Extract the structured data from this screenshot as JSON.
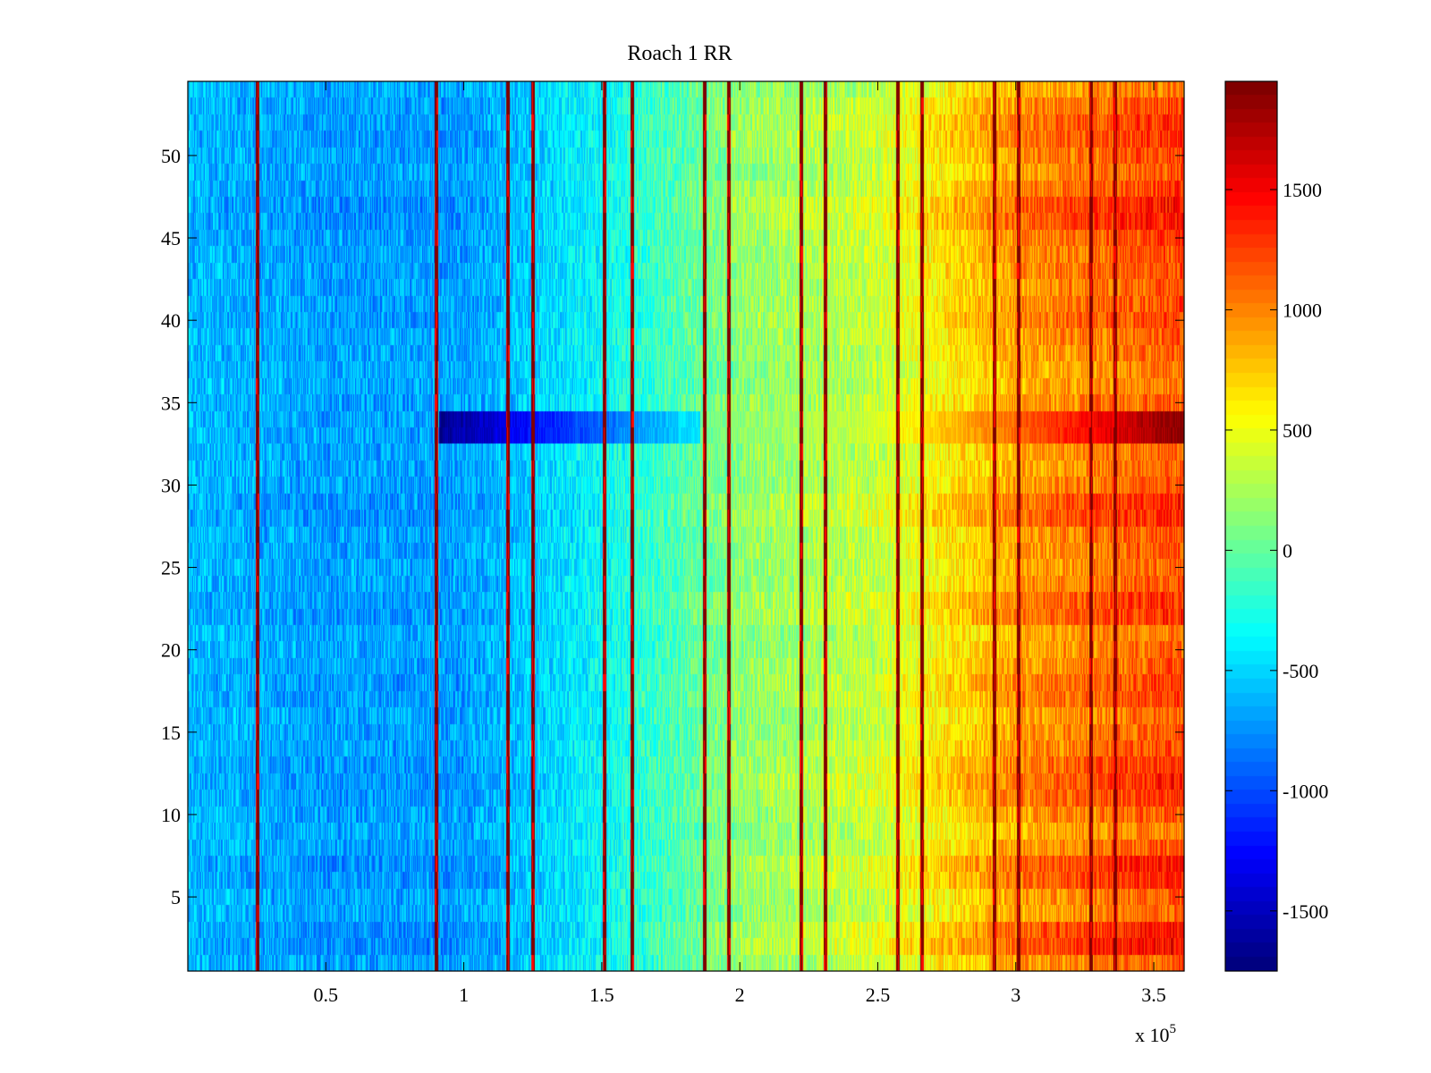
{
  "chart_data": {
    "type": "heatmap",
    "title": "Roach 1 RR",
    "xlabel": "",
    "ylabel": "",
    "x_exponent_label": {
      "base": "x 10",
      "power": "5"
    },
    "xlim": [
      0,
      361000
    ],
    "ylim": [
      0.5,
      54.5
    ],
    "x_tick_values": [
      0.5,
      1,
      1.5,
      2,
      2.5,
      3,
      3.5
    ],
    "x_tick_labels": [
      "0.5",
      "1",
      "1.5",
      "2",
      "2.5",
      "3",
      "3.5"
    ],
    "y_tick_values": [
      5,
      10,
      15,
      20,
      25,
      30,
      35,
      40,
      45,
      50
    ],
    "y_tick_labels": [
      "5",
      "10",
      "15",
      "20",
      "25",
      "30",
      "35",
      "40",
      "45",
      "50"
    ],
    "rows": 54,
    "colorbar": {
      "colormap": "jet",
      "clim": [
        -1750,
        1950
      ],
      "tick_values": [
        -1500,
        -1000,
        -500,
        0,
        500,
        1000,
        1500
      ],
      "tick_labels": [
        "-1500",
        "-1000",
        "-500",
        "0",
        "500",
        "1000",
        "1500"
      ]
    },
    "background_trend": {
      "description_x": [
        0,
        50000,
        100000,
        150000,
        200000,
        250000,
        300000,
        361000
      ],
      "value": [
        -600,
        -700,
        -700,
        -350,
        150,
        350,
        900,
        1200
      ]
    },
    "vertical_stripes_x": [
      25000,
      90000,
      116000,
      125000,
      151000,
      161000,
      187000,
      196000,
      222000,
      231000,
      257000,
      266000,
      292000,
      301000,
      327000,
      336000
    ],
    "vertical_stripe_value": 1950,
    "anomaly_rows": {
      "rows": [
        33,
        34
      ],
      "x_from": 91000,
      "x_to": 361000,
      "value_start": -1700,
      "value_end": 1950
    },
    "row_variation": [
      0,
      0.6,
      0.5,
      -0.1,
      0,
      0.4,
      0.5,
      0,
      -0.2,
      0,
      0.3,
      0.4,
      0.3,
      0.1,
      0,
      -0.1,
      0.2,
      0.2,
      0,
      -0.1,
      -0.2,
      0.3,
      0.3,
      0,
      -0.1,
      0,
      0,
      0.4,
      0.4,
      0,
      -0.1,
      -0.1,
      0,
      0,
      0,
      -0.2,
      -0.2,
      -0.1,
      0,
      0.2,
      0.1,
      0,
      0.1,
      0.1,
      0.2,
      0.5,
      0.5,
      0.2,
      0,
      0.1,
      0.3,
      0.3,
      0.1,
      -0.2
    ]
  }
}
